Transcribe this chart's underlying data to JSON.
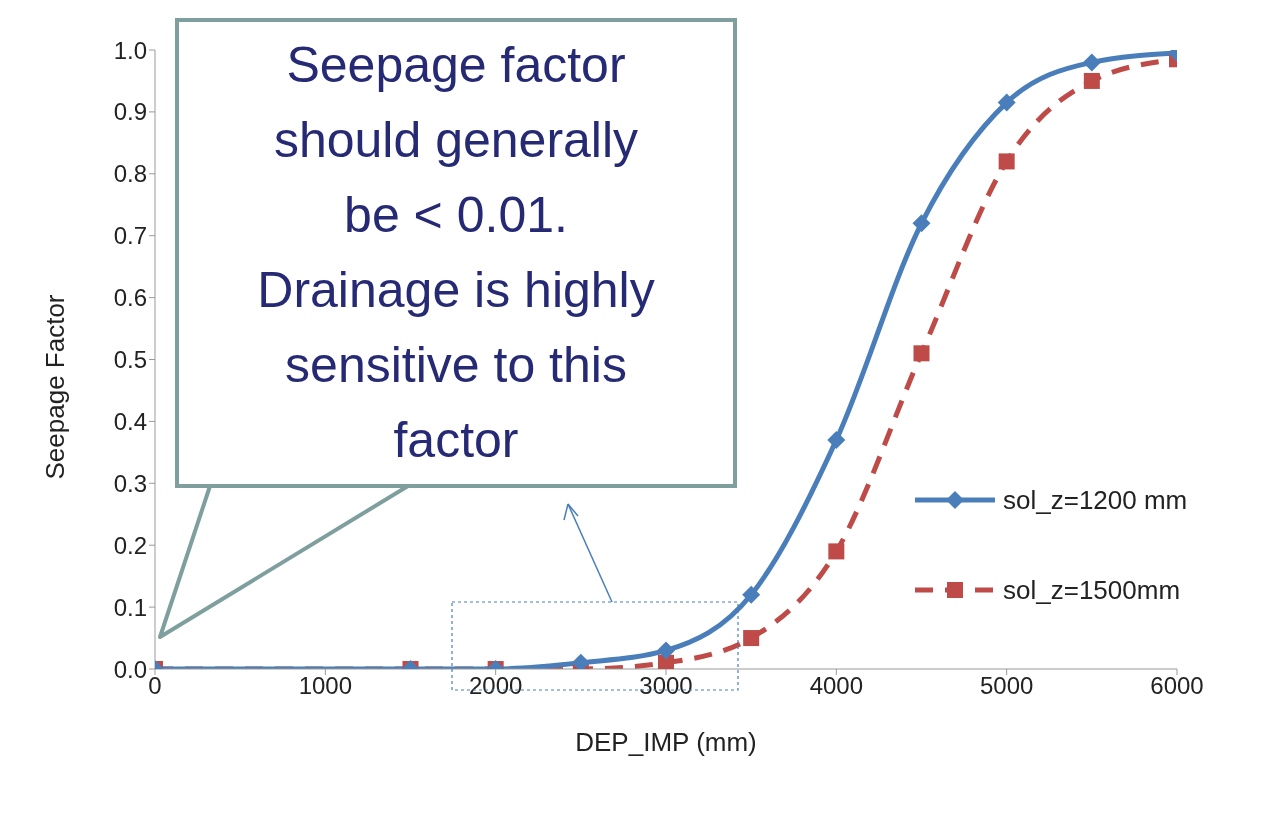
{
  "chart_data": {
    "type": "line",
    "xlabel": "DEP_IMP (mm)",
    "ylabel": "Seepage Factor",
    "xlim": [
      0,
      6000
    ],
    "xticks": [
      0,
      1000,
      2000,
      3000,
      4000,
      5000,
      6000
    ],
    "ylim": [
      0,
      1
    ],
    "yticks": [
      {
        "value": 0,
        "label": "0.0"
      },
      0.1,
      0.2,
      0.3,
      0.4,
      0.5,
      0.6,
      0.7,
      0.8,
      0.9,
      {
        "value": 1,
        "label": "1.0"
      }
    ],
    "grid": false,
    "legend": "right",
    "annotations": [
      "Seepage factor should generally be < 0.01. Drainage is highly sensitive to this factor"
    ],
    "series": [
      {
        "name": "sol_z=1200 mm",
        "color": "#4a7ebb",
        "marker": "diamond",
        "line_style": "solid",
        "x": [
          0,
          1500,
          2000,
          2500,
          3000,
          3500,
          4000,
          4500,
          5000,
          5500,
          6000
        ],
        "values": [
          0,
          0,
          0,
          0.01,
          0.03,
          0.12,
          0.37,
          0.72,
          0.915,
          0.98,
          0.995
        ]
      },
      {
        "name": "sol_z=1500mm",
        "color": "#be4b48",
        "marker": "square",
        "line_style": "dashed",
        "x": [
          0,
          1500,
          2000,
          2500,
          3000,
          3500,
          4000,
          4500,
          5000,
          5500,
          6000
        ],
        "values": [
          0,
          0,
          0,
          0,
          0.01,
          0.05,
          0.19,
          0.51,
          0.82,
          0.95,
          0.985
        ]
      }
    ]
  }
}
